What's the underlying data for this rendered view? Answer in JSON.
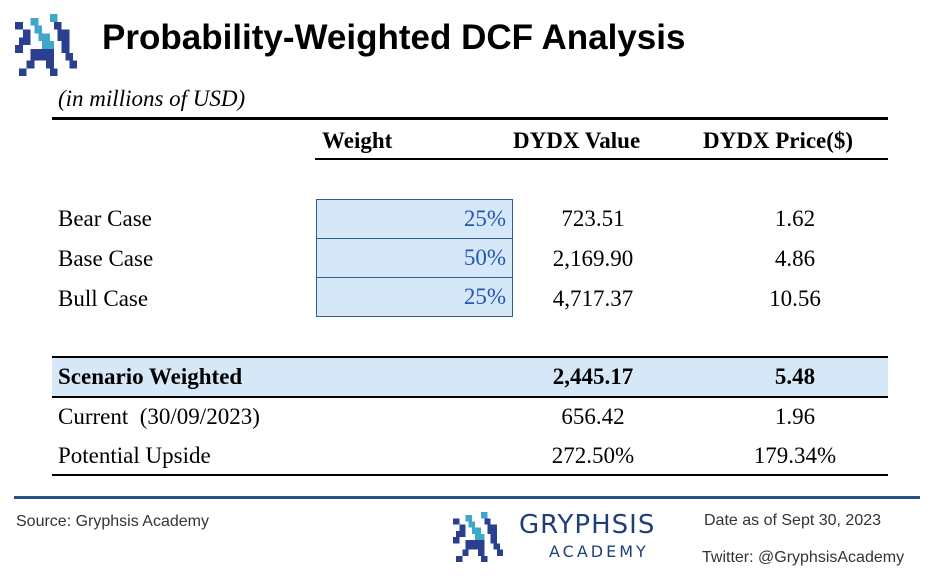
{
  "header": {
    "title": "Probability-Weighted DCF Analysis",
    "subtitle": "(in millions of USD)"
  },
  "table": {
    "columns": [
      "Weight",
      "DYDX Value",
      "DYDX Price($)"
    ],
    "scenarios": [
      {
        "label": "Bear Case",
        "weight": "25%",
        "value": "723.51",
        "price": "1.62"
      },
      {
        "label": "Base Case",
        "weight": "50%",
        "value": "2,169.90",
        "price": "4.86"
      },
      {
        "label": "Bull Case",
        "weight": "25%",
        "value": "4,717.37",
        "price": "10.56"
      }
    ],
    "weighted": {
      "label": "Scenario Weighted",
      "value": "2,445.17",
      "price": "5.48"
    },
    "current": {
      "label": "Current  (30/09/2023)",
      "value": "656.42",
      "price": "1.96"
    },
    "upside": {
      "label": "Potential Upside",
      "value": "272.50%",
      "price": "179.34%"
    }
  },
  "footer": {
    "source": "Source: Gryphsis Academy",
    "brand_name": "GRYPHSIS",
    "brand_sub": "ACADEMY",
    "date": "Date as of Sept 30, 2023",
    "twitter": "Twitter: @GryphsisAcademy"
  },
  "colors": {
    "highlight": "#d6e8f8",
    "weight_text": "#1f56b8",
    "brand": "#1f3f7a",
    "logo_dark": "#2a3f8f",
    "logo_light": "#3fa7c9"
  },
  "icons": {
    "logo": "gryphon-logo-icon"
  }
}
